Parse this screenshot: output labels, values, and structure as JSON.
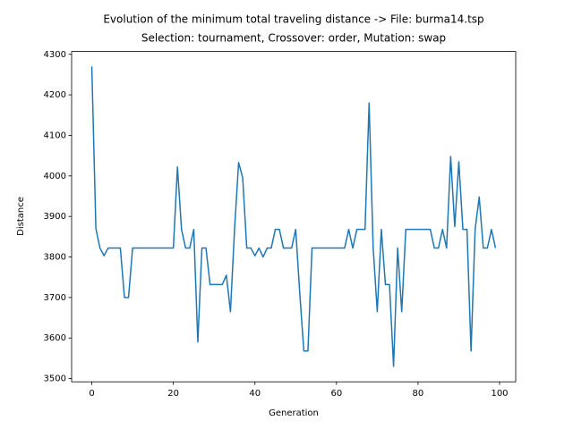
{
  "chart_data": {
    "type": "line",
    "title": "Evolution of the minimum total traveling distance -> File: burma14.tsp",
    "subtitle": "Selection: tournament, Crossover: order, Mutation: swap",
    "x_label": "Generation",
    "y_label": "Distance",
    "x": [
      0,
      1,
      2,
      3,
      4,
      5,
      6,
      7,
      8,
      9,
      10,
      11,
      12,
      13,
      14,
      15,
      16,
      17,
      18,
      19,
      20,
      21,
      22,
      23,
      24,
      25,
      26,
      27,
      28,
      29,
      30,
      31,
      32,
      33,
      34,
      35,
      36,
      37,
      38,
      39,
      40,
      41,
      42,
      43,
      44,
      45,
      46,
      47,
      48,
      49,
      50,
      51,
      52,
      53,
      54,
      55,
      56,
      57,
      58,
      59,
      60,
      61,
      62,
      63,
      64,
      65,
      66,
      67,
      68,
      69,
      70,
      71,
      72,
      73,
      74,
      75,
      76,
      77,
      78,
      79,
      80,
      81,
      82,
      83,
      84,
      85,
      86,
      87,
      88,
      89,
      90,
      91,
      92,
      93,
      94,
      95,
      96,
      97,
      98,
      99
    ],
    "series": [
      {
        "color": "#1f77b4",
        "values": [
          4270,
          3870,
          3822,
          3803,
          3822,
          3822,
          3822,
          3822,
          3700,
          3700,
          3822,
          3822,
          3822,
          3822,
          3822,
          3822,
          3822,
          3822,
          3822,
          3822,
          3822,
          4022,
          3868,
          3822,
          3822,
          3868,
          3590,
          3822,
          3822,
          3732,
          3732,
          3732,
          3732,
          3755,
          3665,
          3868,
          4033,
          3995,
          3822,
          3822,
          3803,
          3822,
          3800,
          3822,
          3822,
          3868,
          3868,
          3822,
          3822,
          3822,
          3868,
          3710,
          3568,
          3568,
          3822,
          3822,
          3822,
          3822,
          3822,
          3822,
          3822,
          3822,
          3822,
          3868,
          3822,
          3868,
          3868,
          3868,
          4180,
          3822,
          3665,
          3868,
          3732,
          3732,
          3530,
          3822,
          3665,
          3868,
          3868,
          3868,
          3868,
          3868,
          3868,
          3868,
          3822,
          3822,
          3868,
          3822,
          4048,
          3875,
          4035,
          3868,
          3868,
          3568,
          3868,
          3948,
          3822,
          3822,
          3868,
          3822
        ]
      }
    ],
    "xlim": [
      -4.95,
      103.95
    ],
    "xticks": [
      0,
      20,
      40,
      60,
      80,
      100
    ],
    "ylim": [
      3492,
      4307
    ],
    "yticks": [
      3500,
      3600,
      3700,
      3800,
      3900,
      4000,
      4100,
      4200,
      4300
    ]
  }
}
